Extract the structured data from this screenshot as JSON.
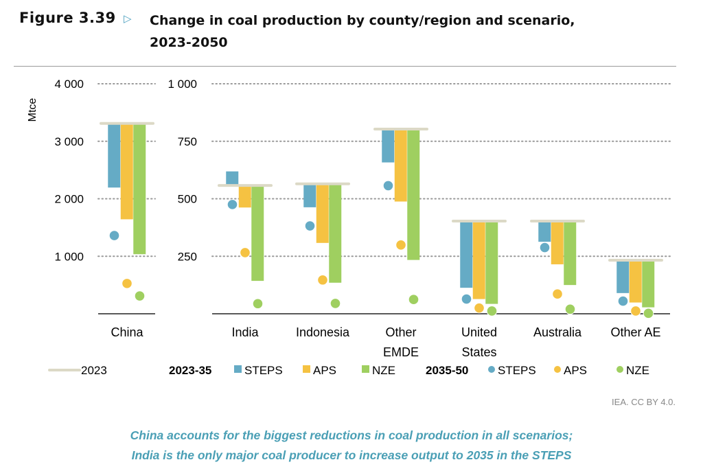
{
  "header": {
    "figure_label": "Figure 3.39",
    "title_line1": "Change in coal production by county/region and scenario,",
    "title_line2": "2023-2050"
  },
  "credit": "IEA. CC BY 4.0.",
  "caption": {
    "line1": "China accounts for the biggest reductions in coal production in all scenarios;",
    "line2": "India is the only major coal producer to increase output to 2035 in the STEPS"
  },
  "colors": {
    "STEPS": "#65abc5",
    "APS": "#f5c242",
    "NZE": "#9fcf60",
    "2023": "#dcd9c6",
    "caption": "#4a9fb5"
  },
  "chart_data": {
    "type": "bar",
    "ylabel": "Mtce",
    "panels": [
      {
        "ylim": [
          0,
          4000
        ],
        "ticks": [
          "4 000",
          "3 000",
          "2 000",
          "1 000"
        ],
        "tick_values": [
          4000,
          3000,
          2000,
          1000
        ]
      },
      {
        "ylim": [
          0,
          1000
        ],
        "ticks": [
          "1 000",
          "750",
          "500",
          "250"
        ],
        "tick_values": [
          1000,
          750,
          500,
          250
        ]
      }
    ],
    "grid": true,
    "legend": {
      "position": "bottom",
      "line_label": "2023",
      "group1": "2023-35",
      "group2": "2035-50",
      "scenarios": [
        "STEPS",
        "APS",
        "NZE"
      ]
    },
    "categories": [
      {
        "name": [
          "China"
        ],
        "panel": 0,
        "y2023": 3310,
        "y2035": {
          "STEPS": 2195,
          "APS": 1643,
          "NZE": 1036
        },
        "y2050": {
          "STEPS": 1360,
          "APS": 527,
          "NZE": 310
        }
      },
      {
        "name": [
          "India"
        ],
        "panel": 1,
        "y2023": 558,
        "y2035": {
          "STEPS": 619,
          "APS": 462,
          "NZE": 143
        },
        "y2050": {
          "STEPS": 475,
          "APS": 266,
          "NZE": 44
        }
      },
      {
        "name": [
          "Indonesia"
        ],
        "panel": 1,
        "y2023": 565,
        "y2035": {
          "STEPS": 463,
          "APS": 308,
          "NZE": 135
        },
        "y2050": {
          "STEPS": 382,
          "APS": 147,
          "NZE": 45
        }
      },
      {
        "name": [
          "Other",
          "EMDE"
        ],
        "panel": 1,
        "y2023": 803,
        "y2035": {
          "STEPS": 658,
          "APS": 488,
          "NZE": 234
        },
        "y2050": {
          "STEPS": 557,
          "APS": 299,
          "NZE": 62
        }
      },
      {
        "name": [
          "United",
          "States"
        ],
        "panel": 1,
        "y2023": 403,
        "y2035": {
          "STEPS": 113,
          "APS": 64,
          "NZE": 43
        },
        "y2050": {
          "STEPS": 64,
          "APS": 25,
          "NZE": 12
        }
      },
      {
        "name": [
          "Australia"
        ],
        "panel": 1,
        "y2023": 403,
        "y2035": {
          "STEPS": 313,
          "APS": 215,
          "NZE": 125
        },
        "y2050": {
          "STEPS": 288,
          "APS": 86,
          "NZE": 20
        }
      },
      {
        "name": [
          "Other AE"
        ],
        "panel": 1,
        "y2023": 233,
        "y2035": {
          "STEPS": 90,
          "APS": 49,
          "NZE": 28
        },
        "y2050": {
          "STEPS": 55,
          "APS": 12,
          "NZE": 2
        }
      }
    ]
  }
}
